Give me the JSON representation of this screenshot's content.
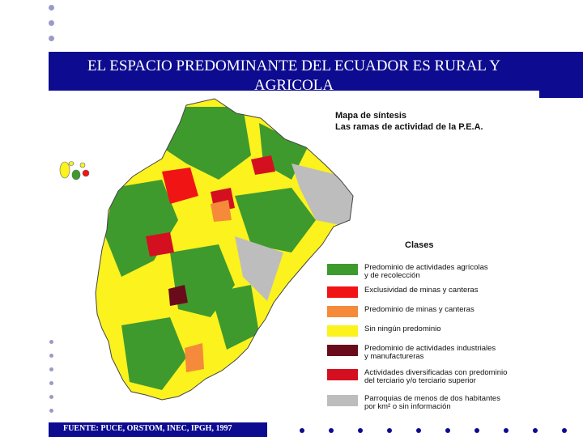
{
  "slide": {
    "title": "EL ESPACIO PREDOMINANTE DEL ECUADOR ES RURAL Y AGRICOLA",
    "source": "FUENTE: PUCE, ORSTOM, INEC, IPGH, 1997"
  },
  "map": {
    "heading_line1": "Mapa de síntesis",
    "heading_line2": "Las ramas de actividad de la P.E.A.",
    "legend_title": "Clases",
    "legend": [
      {
        "label": "Predominio de actividades agrícolas\ny de recolección",
        "color": "#3f9a2e"
      },
      {
        "label": "Exclusividad de minas y canteras",
        "color": "#f01414"
      },
      {
        "label": "Predominio de minas y canteras",
        "color": "#f58a3a"
      },
      {
        "label": "Sin ningún predominio",
        "color": "#fbf21e"
      },
      {
        "label": "Predominio de actividades industriales\ny manufactureras",
        "color": "#6a0b1c"
      },
      {
        "label": "Actividades diversificadas con predominio\ndel terciario y/o terciario superior",
        "color": "#d41020"
      },
      {
        "label": "Parroquias de menos de dos habitantes\npor km² o sin información",
        "color": "#bdbdbd"
      }
    ]
  },
  "colors": {
    "title_bar": "#0d0b8f",
    "bullet": "#9a9ac8"
  }
}
